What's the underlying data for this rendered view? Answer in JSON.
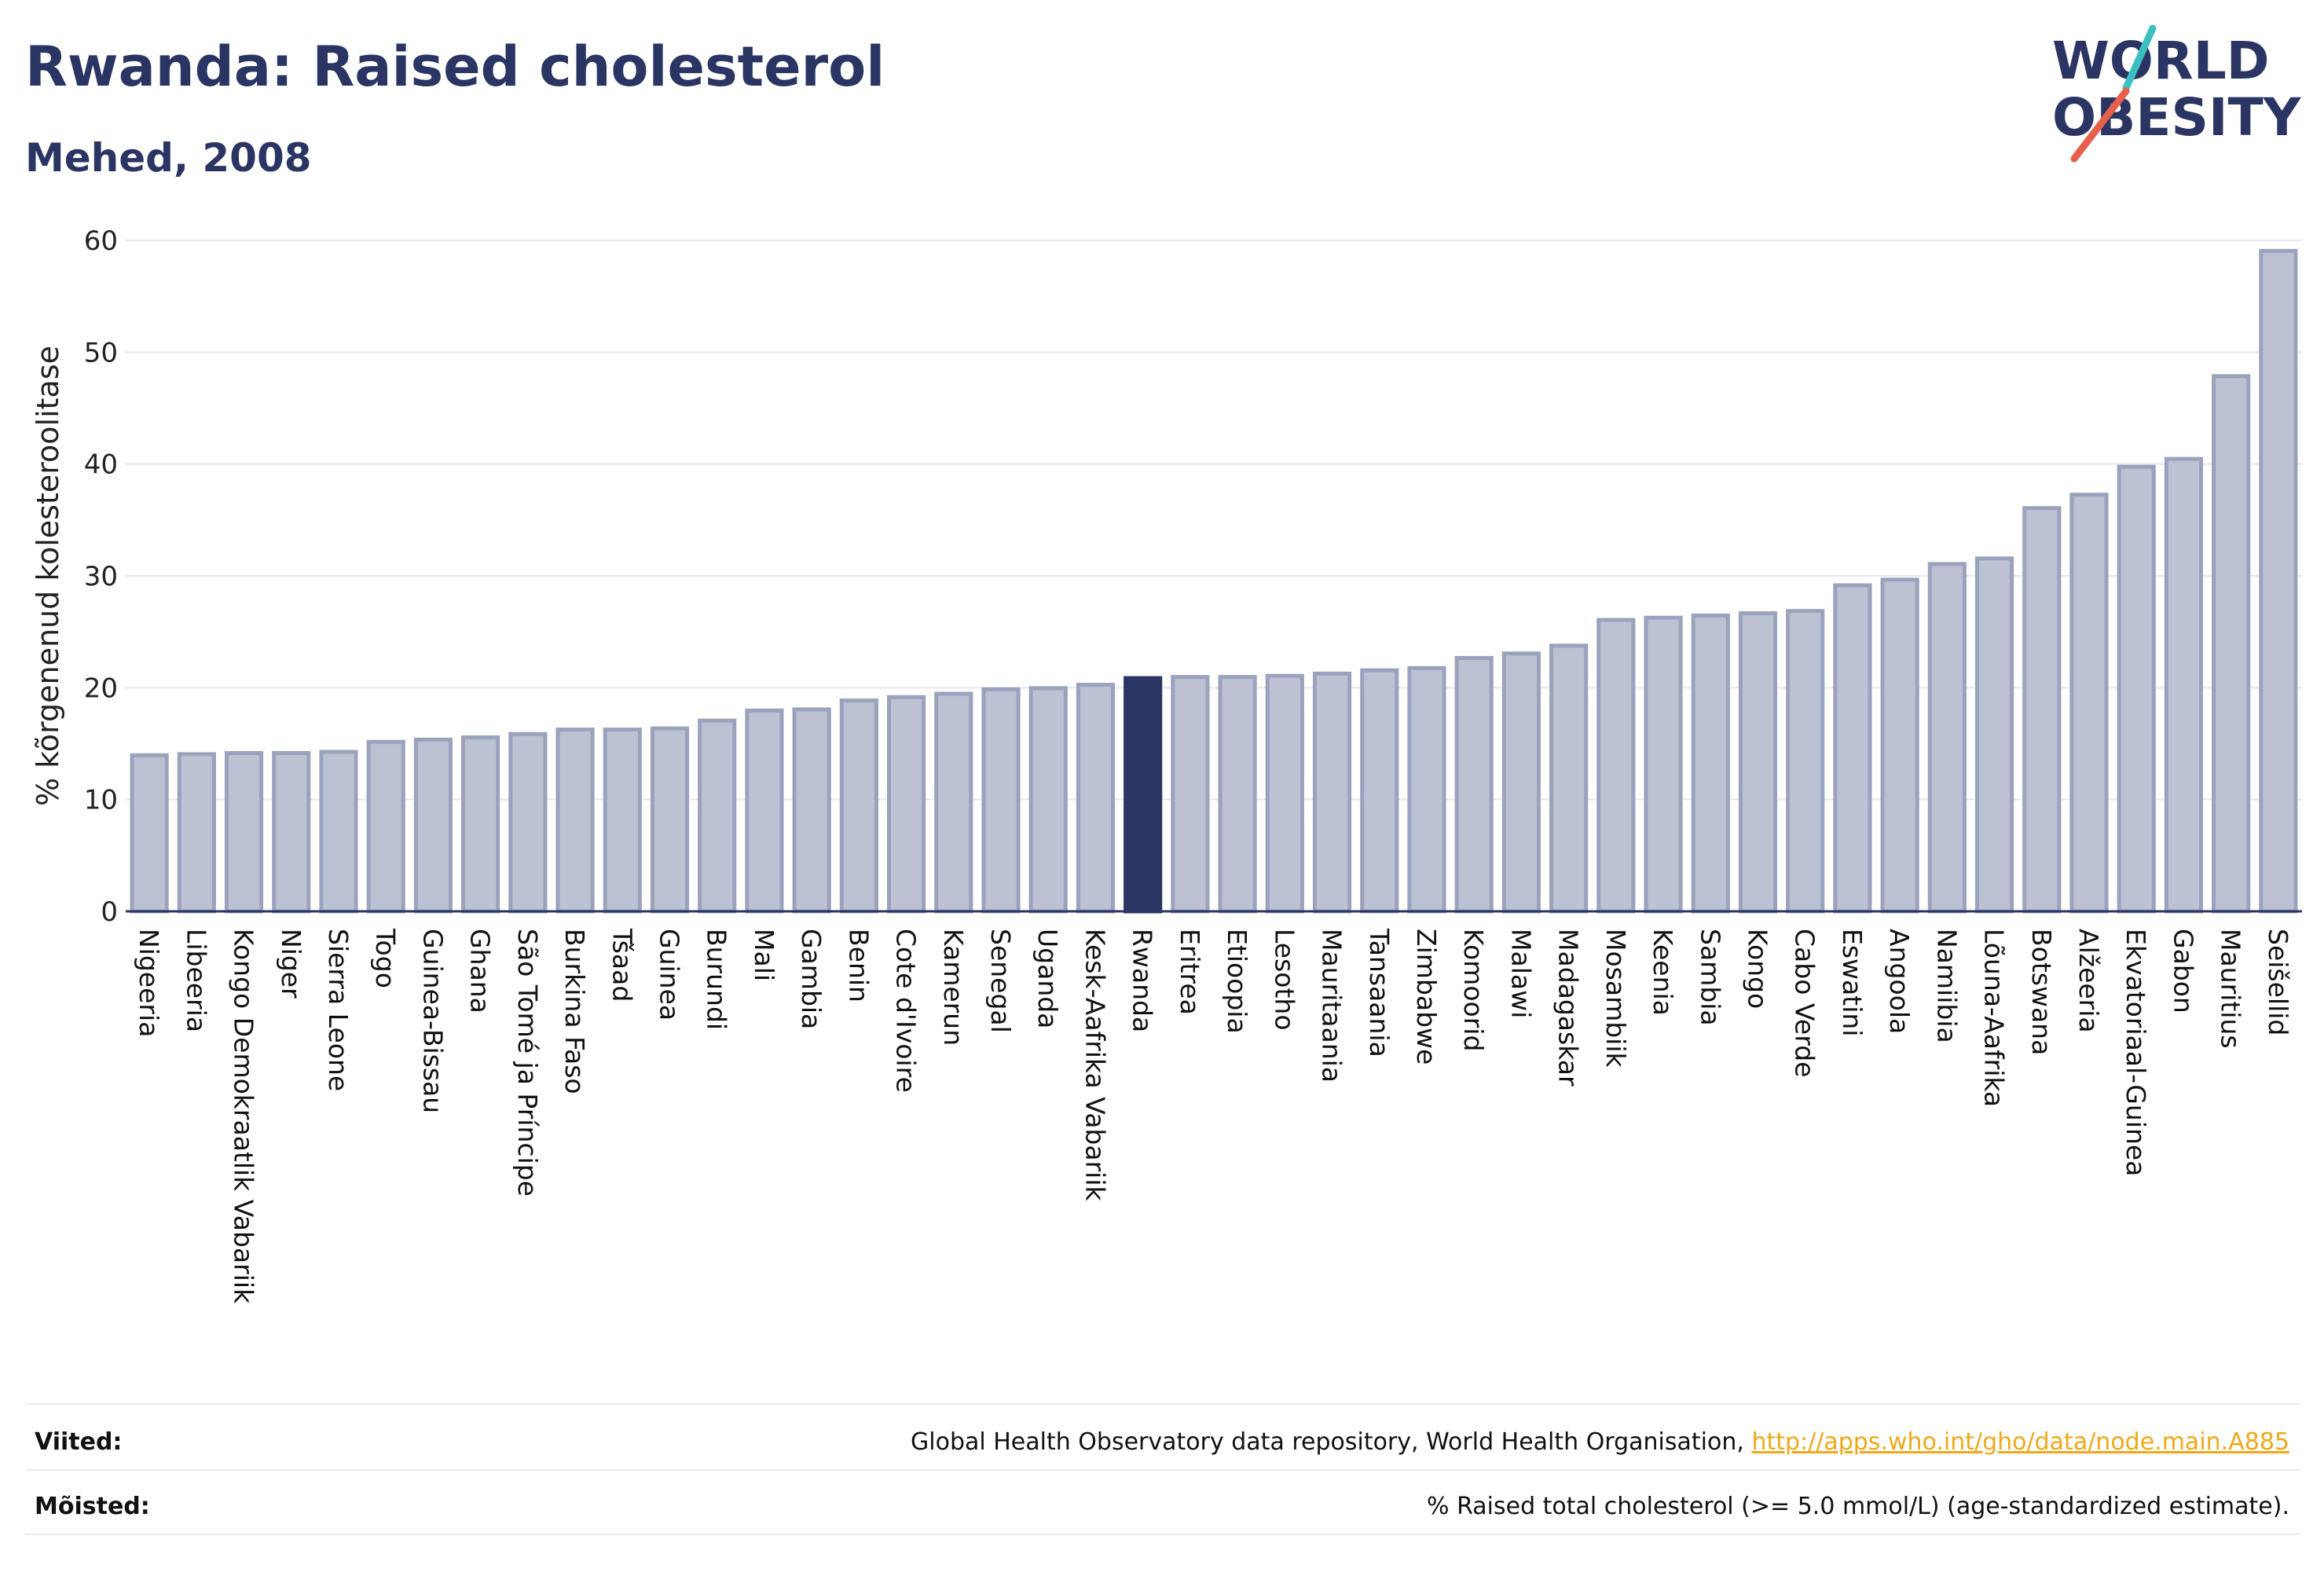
{
  "header": {
    "title": "Rwanda: Raised cholesterol",
    "subtitle": "Mehed, 2008"
  },
  "logo": {
    "line1": "WORLD",
    "line2": "OBESITY",
    "accent_teal": "#3cbfbf",
    "accent_red": "#e8604c",
    "text_color": "#2b3563"
  },
  "chart_data": {
    "type": "bar",
    "title": "Rwanda: Raised cholesterol",
    "subtitle": "Mehed, 2008",
    "ylabel": "% kõrgenenud kolesteroolitase",
    "xlabel": "",
    "ylim": [
      0,
      60
    ],
    "yticks": [
      0,
      10,
      20,
      30,
      40,
      50,
      60
    ],
    "grid": true,
    "highlight": "Rwanda",
    "colors": {
      "bar": "#bcc1d3",
      "bar_border": "#9ba2bc",
      "highlight": "#2b3563"
    },
    "categories": [
      "Nigeeria",
      "Libeeria",
      "Kongo Demokraatlik Vabariik",
      "Niger",
      "Sierra Leone",
      "Togo",
      "Guinea-Bissau",
      "Ghana",
      "São Tomé ja Príncipe",
      "Burkina Faso",
      "Tšaad",
      "Guinea",
      "Burundi",
      "Mali",
      "Gambia",
      "Benin",
      "Cote d'Ivoire",
      "Kamerun",
      "Senegal",
      "Uganda",
      "Kesk-Aafrika Vabariik",
      "Rwanda",
      "Eritrea",
      "Etioopia",
      "Lesotho",
      "Mauritaania",
      "Tansaania",
      "Zimbabwe",
      "Komoorid",
      "Malawi",
      "Madagaskar",
      "Mosambiik",
      "Keenia",
      "Sambia",
      "Kongo",
      "Cabo Verde",
      "Eswatini",
      "Angoola",
      "Namiibia",
      "Lõuna-Aafrika",
      "Botswana",
      "Alžeeria",
      "Ekvatoriaal-Guinea",
      "Gabon",
      "Mauritius",
      "Seišellid"
    ],
    "values": [
      14.1,
      14.2,
      14.3,
      14.3,
      14.4,
      15.3,
      15.5,
      15.7,
      16.0,
      16.4,
      16.4,
      16.5,
      17.2,
      18.1,
      18.2,
      19.0,
      19.3,
      19.6,
      20.0,
      20.1,
      20.4,
      21.0,
      21.1,
      21.1,
      21.2,
      21.4,
      21.7,
      21.9,
      22.8,
      23.2,
      23.9,
      26.2,
      26.4,
      26.6,
      26.8,
      27.0,
      29.3,
      29.8,
      31.2,
      31.7,
      36.2,
      37.4,
      39.9,
      40.6,
      48.0,
      59.2
    ]
  },
  "footer": {
    "sources_label": "Viited:",
    "sources_text": "Global Health Observatory data repository, World Health Organisation, ",
    "sources_link": "http://apps.who.int/gho/data/node.main.A885",
    "definitions_label": "Mõisted:",
    "definitions_text": "% Raised total cholesterol (>= 5.0 mmol/L) (age-standardized estimate)."
  }
}
